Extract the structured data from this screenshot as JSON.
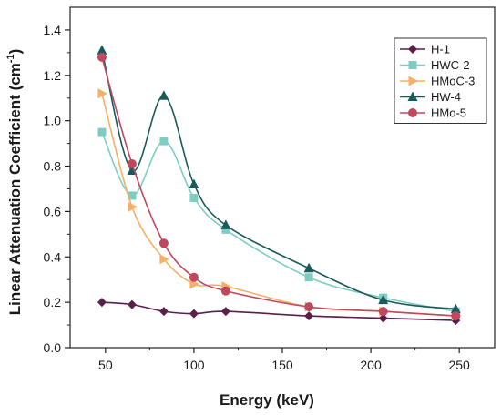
{
  "chart_data": {
    "type": "line",
    "xlabel": "Energy (keV)",
    "ylabel": "Linear Attenuation Coefficient (cm",
    "ylabel_superscript": "-1",
    "ylabel_suffix": ")",
    "xlim": [
      30,
      270
    ],
    "ylim": [
      0.0,
      1.5
    ],
    "xticks": [
      50,
      100,
      150,
      200,
      250
    ],
    "yticks": [
      0.0,
      0.2,
      0.4,
      0.6,
      0.8,
      1.0,
      1.2,
      1.4
    ],
    "ytick_labels": [
      "0.0",
      "0.2",
      "0.4",
      "0.6",
      "0.8",
      "1.0",
      "1.2",
      "1.4"
    ],
    "grid": false,
    "legend_position": "top-right",
    "x": [
      48,
      65,
      83,
      100,
      118,
      165,
      207,
      248
    ],
    "series": [
      {
        "name": "H-1",
        "color": "#5b1f4a",
        "marker": "diamond",
        "values": [
          0.2,
          0.19,
          0.16,
          0.15,
          0.16,
          0.14,
          0.13,
          0.12
        ]
      },
      {
        "name": "HWC-2",
        "color": "#7ecdc2",
        "marker": "square",
        "values": [
          0.95,
          0.67,
          0.91,
          0.66,
          0.52,
          0.31,
          0.22,
          0.16
        ]
      },
      {
        "name": "HMoC-3",
        "color": "#f5b066",
        "marker": "triangle-right",
        "values": [
          1.12,
          0.62,
          0.39,
          0.28,
          0.27,
          0.18,
          0.16,
          0.14
        ]
      },
      {
        "name": "HW-4",
        "color": "#1a5a5c",
        "marker": "triangle-up",
        "values": [
          1.31,
          0.78,
          1.11,
          0.72,
          0.54,
          0.35,
          0.21,
          0.17
        ]
      },
      {
        "name": "HMo-5",
        "color": "#c0485e",
        "marker": "circle",
        "values": [
          1.28,
          0.81,
          0.46,
          0.31,
          0.25,
          0.18,
          0.16,
          0.14
        ]
      }
    ]
  }
}
